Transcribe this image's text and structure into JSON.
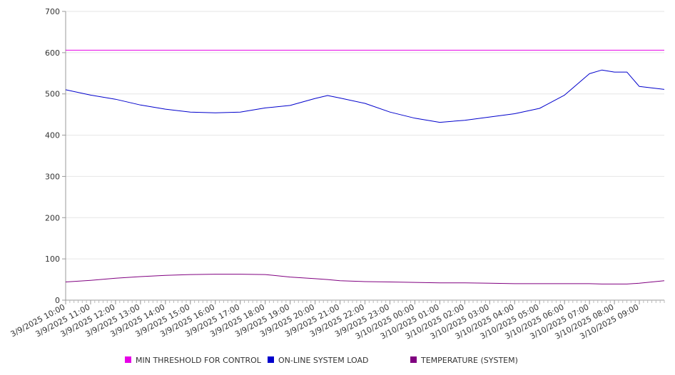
{
  "chart_data": {
    "type": "line",
    "title": "",
    "xlabel": "",
    "ylabel": "",
    "ylim": [
      0,
      700
    ],
    "yticks": [
      0,
      100,
      200,
      300,
      400,
      500,
      600,
      700
    ],
    "grid": true,
    "legend_position": "bottom",
    "xtick_labels": [
      "3/9/2025 10:00",
      "3/9/2025 11:00",
      "3/9/2025 12:00",
      "3/9/2025 13:00",
      "3/9/2025 14:00",
      "3/9/2025 15:00",
      "3/9/2025 16:00",
      "3/9/2025 17:00",
      "3/9/2025 18:00",
      "3/9/2025 19:00",
      "3/9/2025 20:00",
      "3/9/2025 21:00",
      "3/9/2025 22:00",
      "3/9/2025 23:00",
      "3/10/2025 00:00",
      "3/10/2025 01:00",
      "3/10/2025 02:00",
      "3/10/2025 03:00",
      "3/10/2025 04:00",
      "3/10/2025 05:00",
      "3/10/2025 06:00",
      "3/10/2025 07:00",
      "3/10/2025 08:00",
      "3/10/2025 09:00"
    ],
    "x_range": [
      "3/9/2025 10:00",
      "3/10/2025 10:00"
    ],
    "x": [
      "3/9/2025 10:00",
      "3/9/2025 11:00",
      "3/9/2025 12:00",
      "3/9/2025 13:00",
      "3/9/2025 14:00",
      "3/9/2025 15:00",
      "3/9/2025 16:00",
      "3/9/2025 17:00",
      "3/9/2025 18:00",
      "3/9/2025 19:00",
      "3/9/2025 20:00",
      "3/9/2025 20:30",
      "3/9/2025 21:00",
      "3/9/2025 22:00",
      "3/9/2025 23:00",
      "3/10/2025 00:00",
      "3/10/2025 01:00",
      "3/10/2025 02:00",
      "3/10/2025 03:00",
      "3/10/2025 04:00",
      "3/10/2025 05:00",
      "3/10/2025 06:00",
      "3/10/2025 07:00",
      "3/10/2025 07:30",
      "3/10/2025 08:00",
      "3/10/2025 08:30",
      "3/10/2025 09:00",
      "3/10/2025 10:00"
    ],
    "series": [
      {
        "name": "MIN THRESHOLD FOR CONTROL",
        "color": "#e600e6",
        "values": [
          606,
          606,
          606,
          606,
          606,
          606,
          606,
          606,
          606,
          606,
          606,
          606,
          606,
          606,
          606,
          606,
          606,
          606,
          606,
          606,
          606,
          606,
          606,
          606,
          606,
          606,
          606,
          606
        ]
      },
      {
        "name": "ON-LINE SYSTEM LOAD",
        "color": "#0000cc",
        "values": [
          510,
          497,
          487,
          473,
          463,
          456,
          454,
          456,
          466,
          472,
          489,
          496,
          490,
          477,
          456,
          441,
          431,
          436,
          444,
          452,
          465,
          497,
          549,
          558,
          553,
          553,
          518,
          511
        ]
      },
      {
        "name": "TEMPERATURE (SYSTEM)",
        "color": "#800080",
        "values": [
          44,
          48,
          53,
          57,
          60,
          62,
          63,
          63,
          62,
          56,
          52,
          50,
          47,
          45,
          44,
          43,
          42,
          42,
          41,
          40,
          40,
          40,
          40,
          39,
          39,
          39,
          41,
          47
        ]
      }
    ]
  }
}
